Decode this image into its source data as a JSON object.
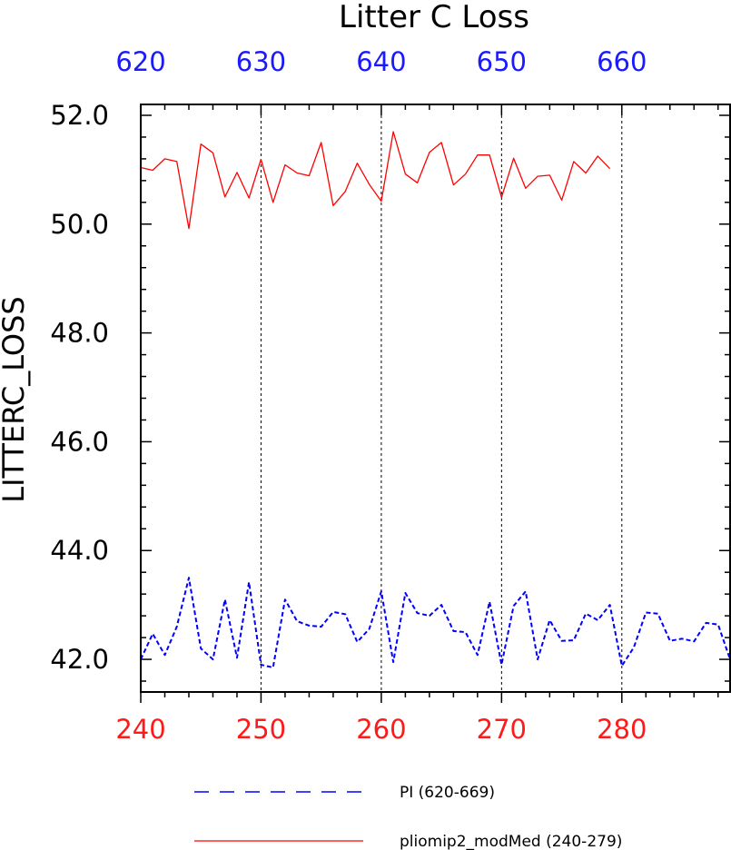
{
  "chart_data": {
    "type": "line",
    "title": "Litter C Loss",
    "ylabel": "LITTERC_LOSS",
    "ylim": [
      41.4,
      52.2
    ],
    "y_ticks": [
      "42.0",
      "44.0",
      "46.0",
      "48.0",
      "50.0",
      "52.0"
    ],
    "bottom_axis": {
      "range": [
        240,
        289
      ],
      "ticks": [
        "240",
        "250",
        "260",
        "270",
        "280"
      ],
      "color": "#ff1a1a"
    },
    "top_axis": {
      "range": [
        620,
        669
      ],
      "ticks": [
        "620",
        "630",
        "640",
        "650",
        "660"
      ],
      "color": "#1a1aff"
    },
    "grid": "vertical dashed at labelled x ticks",
    "legend_position": "bottom",
    "series": [
      {
        "name": "PI (620-669)",
        "color": "#0000ff",
        "dash": "dashed",
        "axis": "top",
        "x": [
          620,
          621,
          622,
          623,
          624,
          625,
          626,
          627,
          628,
          629,
          630,
          631,
          632,
          633,
          634,
          635,
          636,
          637,
          638,
          639,
          640,
          641,
          642,
          643,
          644,
          645,
          646,
          647,
          648,
          649,
          650,
          651,
          652,
          653,
          654,
          655,
          656,
          657,
          658,
          659,
          660,
          661,
          662,
          663,
          664,
          665,
          666,
          667,
          668,
          669
        ],
        "values": [
          42.0,
          42.47,
          42.08,
          42.6,
          43.5,
          42.2,
          42.0,
          43.1,
          42.03,
          43.42,
          41.9,
          41.85,
          43.1,
          42.7,
          42.62,
          42.6,
          42.87,
          42.83,
          42.32,
          42.56,
          43.25,
          41.95,
          43.22,
          42.85,
          42.8,
          43.0,
          42.52,
          42.5,
          42.08,
          43.06,
          41.9,
          42.98,
          43.25,
          42.0,
          42.72,
          42.34,
          42.35,
          42.84,
          42.72,
          43.0,
          41.88,
          42.22,
          42.86,
          42.84,
          42.34,
          42.38,
          42.33,
          42.67,
          42.64,
          42.0
        ]
      },
      {
        "name": "pliomip2_modMed (240-279)",
        "color": "#ff0000",
        "dash": "solid",
        "axis": "bottom",
        "x": [
          240,
          241,
          242,
          243,
          244,
          245,
          246,
          247,
          248,
          249,
          250,
          251,
          252,
          253,
          254,
          255,
          256,
          257,
          258,
          259,
          260,
          261,
          262,
          263,
          264,
          265,
          266,
          267,
          268,
          269,
          270,
          271,
          272,
          273,
          274,
          275,
          276,
          277,
          278,
          279
        ],
        "values": [
          51.04,
          50.99,
          51.2,
          51.15,
          49.92,
          51.47,
          51.31,
          50.5,
          50.95,
          50.48,
          51.19,
          50.4,
          51.09,
          50.94,
          50.89,
          51.5,
          50.34,
          50.6,
          51.12,
          50.73,
          50.42,
          51.7,
          50.92,
          50.76,
          51.32,
          51.5,
          50.72,
          50.92,
          51.27,
          51.27,
          50.49,
          51.21,
          50.66,
          50.88,
          50.9,
          50.44,
          51.15,
          50.94,
          51.25,
          51.02
        ]
      }
    ]
  }
}
